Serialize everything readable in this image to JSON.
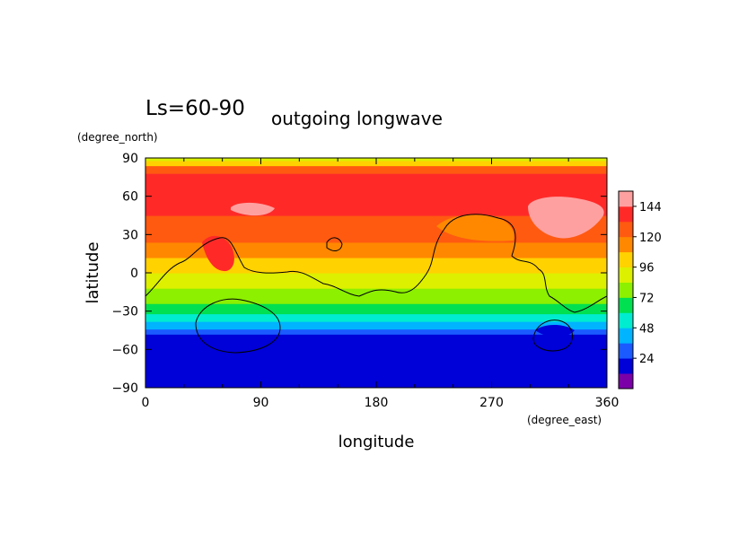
{
  "chart_data": {
    "type": "heatmap",
    "title_left": "Ls=60-90",
    "title_right": "outgoing longwave",
    "xlabel": "longitude",
    "ylabel": "latitude",
    "x_unit": "(degree_east)",
    "y_unit": "(degree_north)",
    "xlim": [
      0,
      360
    ],
    "ylim": [
      -90,
      90
    ],
    "x_ticks": [
      "0",
      "90",
      "180",
      "270",
      "360"
    ],
    "y_ticks": [
      "90",
      "60",
      "30",
      "0",
      "−30",
      "−60",
      "−90"
    ],
    "colorbar": {
      "levels": [
        12,
        24,
        36,
        48,
        60,
        72,
        84,
        96,
        108,
        120,
        132,
        144,
        156
      ],
      "labels": [
        "24",
        "48",
        "72",
        "96",
        "120",
        "144"
      ],
      "colors": [
        "#7b00a8",
        "#0000d8",
        "#1a5aff",
        "#00b4ff",
        "#00ecd0",
        "#00e050",
        "#8cf000",
        "#dcf000",
        "#ffd200",
        "#ff8800",
        "#ff5a10",
        "#ff2a28",
        "#ffa0a0"
      ]
    },
    "band_profile_by_latitude": [
      {
        "lat": -90,
        "value": 18
      },
      {
        "lat": -52,
        "value": 18
      },
      {
        "lat": -48,
        "value": 30
      },
      {
        "lat": -44,
        "value": 42
      },
      {
        "lat": -38,
        "value": 54
      },
      {
        "lat": -32,
        "value": 66
      },
      {
        "lat": -24,
        "value": 78
      },
      {
        "lat": -12,
        "value": 90
      },
      {
        "lat": 0,
        "value": 102
      },
      {
        "lat": 12,
        "value": 114
      },
      {
        "lat": 24,
        "value": 126
      },
      {
        "lat": 45,
        "value": 138
      },
      {
        "lat": 70,
        "value": 138
      },
      {
        "lat": 78,
        "value": 126
      },
      {
        "lat": 84,
        "value": 102
      },
      {
        "lat": 88,
        "value": 90
      },
      {
        "lat": 90,
        "value": 84
      }
    ]
  }
}
